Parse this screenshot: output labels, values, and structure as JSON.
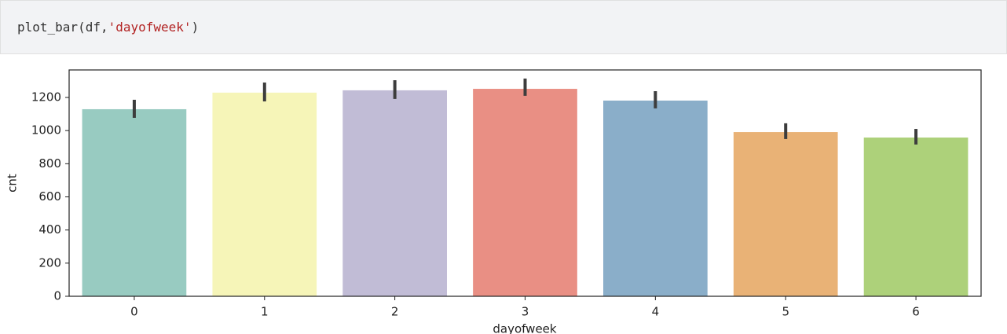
{
  "code": {
    "tokens": [
      "plot_bar(df,",
      "'dayofweek'",
      ")"
    ]
  },
  "chart_data": {
    "type": "bar",
    "xlabel": "dayofweek",
    "ylabel": "cnt",
    "categories": [
      "0",
      "1",
      "2",
      "3",
      "4",
      "5",
      "6"
    ],
    "values": [
      1129,
      1229,
      1243,
      1252,
      1181,
      991,
      958
    ],
    "ci_low": [
      1077,
      1176,
      1191,
      1210,
      1134,
      949,
      916
    ],
    "ci_high": [
      1186,
      1290,
      1304,
      1314,
      1238,
      1044,
      1010
    ],
    "colors": [
      "#98cbc1",
      "#f6f5b8",
      "#c1bcd6",
      "#e98f84",
      "#8aaec9",
      "#e9b276",
      "#add17a"
    ],
    "ylim": [
      0,
      1366
    ],
    "yticks": [
      0,
      200,
      400,
      600,
      800,
      1000,
      1200
    ],
    "grid": false
  }
}
